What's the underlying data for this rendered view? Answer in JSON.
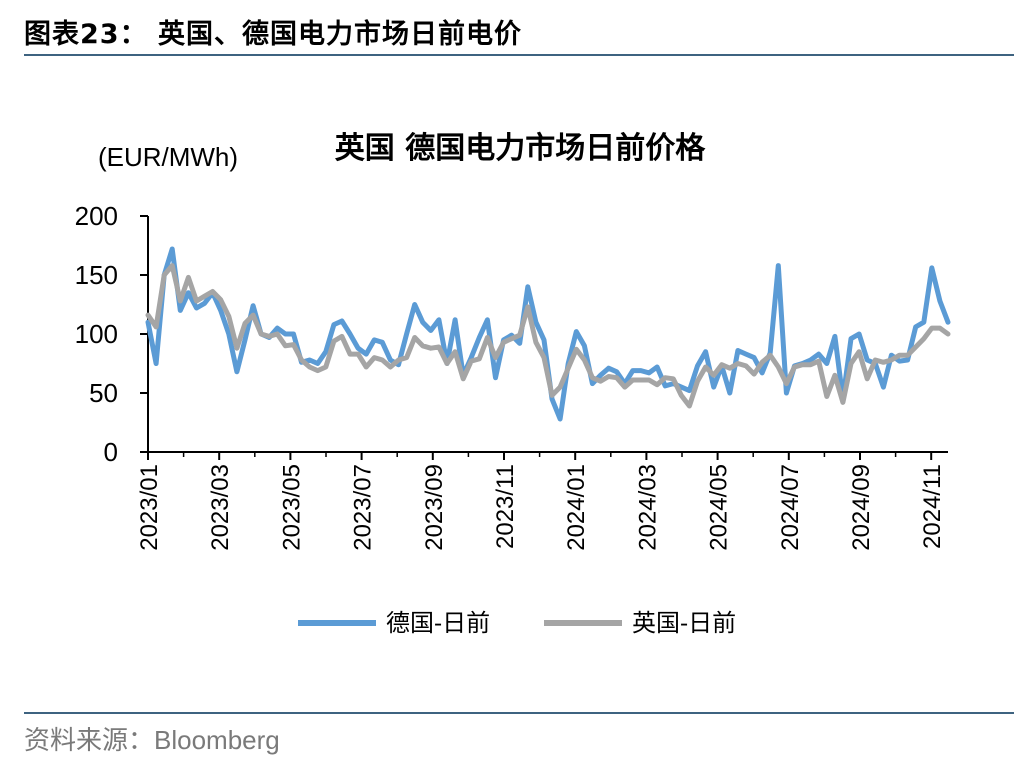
{
  "header": {
    "title": "图表23： 英国、德国电力市场日前电价"
  },
  "source": {
    "prefix": "资料来源：",
    "name": "Bloomberg"
  },
  "colors": {
    "rule": "#3e6380",
    "germany": "#5b9bd5",
    "uk": "#a5a5a5"
  },
  "chart_data": {
    "type": "line",
    "title": "英国 德国电力市场日前价格",
    "unit_label": "(EUR/MWh)",
    "xlabel": "",
    "ylabel": "",
    "ylim": [
      0,
      200
    ],
    "yticks": [
      "200",
      "150",
      "100",
      "50",
      "0"
    ],
    "xticks": [
      "2023/01",
      "2023/03",
      "2023/05",
      "2023/07",
      "2023/09",
      "2023/11",
      "2024/01",
      "2024/03",
      "2024/05",
      "2024/07",
      "2024/09",
      "2024/11"
    ],
    "grid": false,
    "legend_position": "bottom",
    "x_start": "2023/01",
    "x_end": "2024/11",
    "series": [
      {
        "name": "德国-日前",
        "color": "#5b9bd5",
        "values": [
          110,
          75,
          150,
          172,
          120,
          135,
          122,
          126,
          135,
          120,
          100,
          68,
          95,
          124,
          100,
          97,
          105,
          100,
          100,
          76,
          78,
          75,
          85,
          108,
          111,
          100,
          88,
          83,
          95,
          93,
          78,
          74,
          100,
          125,
          110,
          103,
          112,
          75,
          112,
          65,
          80,
          97,
          112,
          63,
          95,
          99,
          92,
          140,
          110,
          95,
          45,
          28,
          75,
          102,
          90,
          58,
          65,
          71,
          68,
          58,
          69,
          69,
          67,
          72,
          56,
          58,
          55,
          52,
          73,
          85,
          55,
          73,
          50,
          86,
          83,
          80,
          67,
          84,
          158,
          50,
          73,
          75,
          78,
          83,
          75,
          98,
          45,
          96,
          100,
          78,
          75,
          55,
          82,
          77,
          78,
          106,
          110,
          156,
          128,
          110
        ]
      },
      {
        "name": "英国-日前",
        "color": "#a5a5a5",
        "values": [
          116,
          106,
          150,
          158,
          128,
          148,
          128,
          132,
          136,
          129,
          115,
          88,
          109,
          116,
          100,
          98,
          100,
          90,
          91,
          78,
          72,
          69,
          72,
          94,
          98,
          83,
          83,
          72,
          80,
          78,
          72,
          78,
          80,
          97,
          90,
          88,
          89,
          75,
          85,
          62,
          77,
          79,
          97,
          80,
          93,
          96,
          99,
          123,
          93,
          80,
          48,
          55,
          71,
          87,
          78,
          63,
          60,
          64,
          63,
          55,
          61,
          61,
          61,
          57,
          63,
          62,
          48,
          39,
          60,
          72,
          65,
          74,
          71,
          75,
          73,
          66,
          76,
          82,
          72,
          58,
          72,
          74,
          74,
          77,
          47,
          65,
          42,
          75,
          85,
          62,
          78,
          76,
          78,
          82,
          82,
          89,
          96,
          105,
          105,
          100
        ]
      }
    ]
  }
}
